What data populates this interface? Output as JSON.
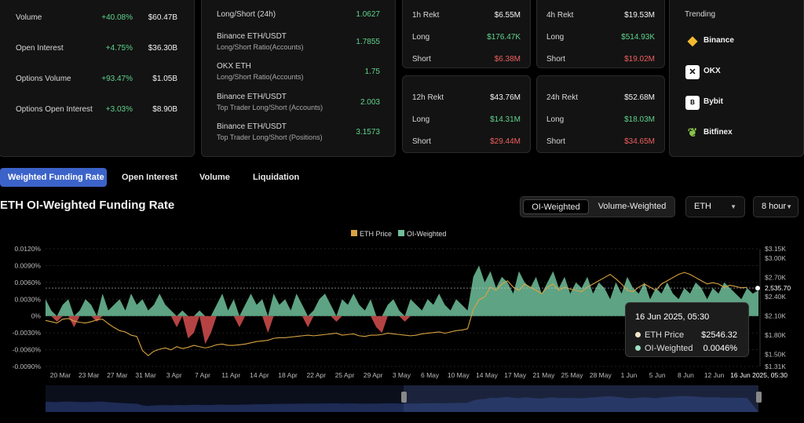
{
  "summary": {
    "rows": [
      {
        "label": "Volume",
        "change": "+40.08%",
        "value": "$60.47B"
      },
      {
        "label": "Open Interest",
        "change": "+4.75%",
        "value": "$36.30B"
      },
      {
        "label": "Options Volume",
        "change": "+93.47%",
        "value": "$1.05B"
      },
      {
        "label": "Options Open Interest",
        "change": "+3.03%",
        "value": "$8.90B"
      }
    ]
  },
  "longshort": {
    "header_label": "Long/Short (24h)",
    "header_value": "1.0627",
    "rows": [
      {
        "title": "Binance ETH/USDT",
        "subtitle": "Long/Short Ratio(Accounts)",
        "value": "1.7855"
      },
      {
        "title": "OKX ETH",
        "subtitle": "Long/Short Ratio(Accounts)",
        "value": "1.75"
      },
      {
        "title": "Binance ETH/USDT",
        "subtitle": "Top Trader Long/Short (Accounts)",
        "value": "2.003"
      },
      {
        "title": "Binance ETH/USDT",
        "subtitle": "Top Trader Long/Short (Positions)",
        "value": "3.1573"
      }
    ]
  },
  "rekt": [
    {
      "label": "1h Rekt",
      "total": "$6.55M",
      "long": "$176.47K",
      "short": "$6.38M"
    },
    {
      "label": "4h Rekt",
      "total": "$19.53M",
      "long": "$514.93K",
      "short": "$19.02M"
    },
    {
      "label": "12h Rekt",
      "total": "$43.76M",
      "long": "$14.31M",
      "short": "$29.44M"
    },
    {
      "label": "24h Rekt",
      "total": "$52.68M",
      "long": "$18.03M",
      "short": "$34.65M"
    }
  ],
  "rekt_labels": {
    "long": "Long",
    "short": "Short"
  },
  "trending": {
    "title": "Trending",
    "items": [
      {
        "name": "Binance",
        "icon": "binance-icon",
        "color": "#f3ba2f"
      },
      {
        "name": "OKX",
        "icon": "okx-icon",
        "color": "#ffffff"
      },
      {
        "name": "Bybit",
        "icon": "bybit-icon",
        "color": "#ffffff"
      },
      {
        "name": "Bitfinex",
        "icon": "bitfinex-icon",
        "color": "#8bc34a"
      }
    ]
  },
  "tabs": [
    "Weighted Funding Rate",
    "Open Interest",
    "Volume",
    "Liquidation"
  ],
  "chart_title": "ETH OI-Weighted Funding Rate",
  "toggle": [
    "OI-Weighted",
    "Volume-Weighted"
  ],
  "asset_select": "ETH",
  "interval_select": "8 hour",
  "tooltip": {
    "date": "16 Jun 2025, 05:30",
    "price_label": "ETH Price",
    "price_value": "$2546.32",
    "rate_label": "OI-Weighted",
    "rate_value": "0.0046%"
  },
  "colors": {
    "positive": "#6fbf9a",
    "negative": "#c94a4a",
    "price": "#d9a441",
    "accent": "#3c63c9"
  },
  "chart_data": {
    "type": "area",
    "legend": [
      "ETH Price",
      "OI-Weighted"
    ],
    "legend_position": "top-center",
    "y_left_ticks": [
      "0.0120%",
      "0.0090%",
      "0.0060%",
      "0.0030%",
      "0%",
      "-0.0030%",
      "-0.0060%",
      "-0.0090%"
    ],
    "y_left_range": [
      -0.009,
      0.012
    ],
    "y_right_ticks": [
      "$3.15K",
      "$3.00K",
      "$2.70K",
      "$2.40K",
      "$2.10K",
      "$1.80K",
      "$1.50K",
      "$1.31K"
    ],
    "y_right_range": [
      1310,
      3150
    ],
    "current_price_label": "2,535.70",
    "x_ticks": [
      "20 Mar",
      "23 Mar",
      "27 Mar",
      "31 Mar",
      "3 Apr",
      "7 Apr",
      "11 Apr",
      "14 Apr",
      "18 Apr",
      "22 Apr",
      "25 Apr",
      "29 Apr",
      "3 May",
      "6 May",
      "10 May",
      "14 May",
      "17 May",
      "21 May",
      "25 May",
      "28 May",
      "1 Jun",
      "5 Jun",
      "8 Jun",
      "12 Jun"
    ],
    "x_last_label": "16 Jun 2025, 05:30",
    "funding_rate": [
      0.003,
      0.001,
      -0.001,
      0.002,
      0.003,
      -0.002,
      0.001,
      0.003,
      0.002,
      -0.001,
      0.004,
      0.001,
      0.002,
      0.003,
      0.001,
      0.004,
      0.002,
      0.003,
      0.001,
      0.002,
      0.004,
      0.002,
      0.001,
      -0.002,
      0.001,
      -0.004,
      -0.003,
      0.001,
      -0.005,
      -0.003,
      0.002,
      0.004,
      0.001,
      0.003,
      -0.002,
      0.002,
      0.004,
      0.002,
      0.003,
      -0.003,
      0.004,
      0.002,
      0.003,
      0.001,
      0.004,
      0.002,
      -0.002,
      0.001,
      0.003,
      0.004,
      0.002,
      -0.001,
      0.003,
      0.002,
      0.004,
      0.002,
      0.001,
      0.003,
      -0.002,
      -0.003,
      0.002,
      0.003,
      0.001,
      -0.001,
      0.003,
      0.002,
      0.001,
      0.003,
      0.002,
      0.004,
      0.002,
      0.001,
      0.003,
      0.002,
      0.001,
      0.007,
      0.009,
      0.006,
      0.008,
      0.005,
      0.007,
      0.006,
      0.004,
      0.008,
      0.006,
      0.005,
      0.007,
      0.004,
      0.006,
      0.008,
      0.005,
      0.007,
      0.004,
      0.006,
      0.005,
      0.007,
      0.004,
      0.006,
      0.005,
      0.003,
      0.006,
      0.004,
      0.007,
      0.005,
      0.004,
      0.006,
      0.003,
      0.005,
      0.004,
      0.006,
      0.004,
      0.003,
      0.005,
      0.004,
      0.006,
      0.005,
      0.003,
      0.005,
      0.004,
      0.006,
      0.005,
      0.004,
      0.003,
      0.005,
      0.004,
      0.0046
    ],
    "eth_price": [
      2030,
      2010,
      1990,
      2050,
      2060,
      2020,
      2000,
      1990,
      2010,
      2040,
      2050,
      1980,
      1920,
      1870,
      1850,
      1800,
      1780,
      1560,
      1480,
      1550,
      1580,
      1600,
      1570,
      1620,
      1590,
      1610,
      1640,
      1620,
      1600,
      1620,
      1650,
      1660,
      1640,
      1640,
      1650,
      1660,
      1680,
      1700,
      1710,
      1720,
      1750,
      1760,
      1760,
      1770,
      1780,
      1790,
      1800,
      1790,
      1800,
      1810,
      1820,
      1830,
      1800,
      1810,
      1820,
      1790,
      1780,
      1800,
      1800,
      1810,
      1830,
      1820,
      1810,
      1800,
      1790,
      1800,
      1820,
      1830,
      1840,
      1850,
      1830,
      1850,
      1870,
      1880,
      1900,
      2200,
      2350,
      2400,
      2550,
      2500,
      2600,
      2650,
      2550,
      2500,
      2600,
      2550,
      2500,
      2450,
      2550,
      2600,
      2500,
      2550,
      2520,
      2500,
      2480,
      2550,
      2600,
      2650,
      2700,
      2750,
      2680,
      2600,
      2500,
      2480,
      2550,
      2600,
      2550,
      2500,
      2600,
      2650,
      2700,
      2750,
      2780,
      2750,
      2700,
      2650,
      2600,
      2620,
      2600,
      2550,
      2580,
      2560,
      2540,
      2546.32
    ]
  }
}
